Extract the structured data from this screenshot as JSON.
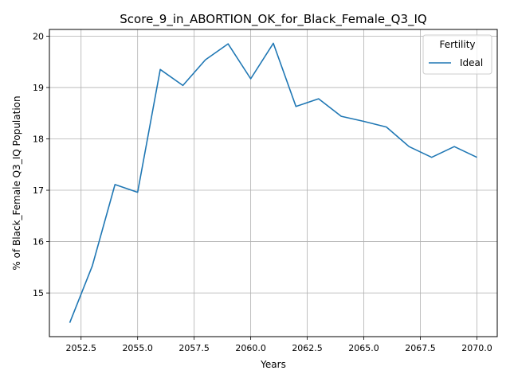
{
  "chart_data": {
    "type": "line",
    "title": "Score_9_in_ABORTION_OK_for_Black_Female_Q3_IQ",
    "xlabel": "Years",
    "ylabel": "% of Black_Female Q3_IQ Population",
    "xlim": [
      2051.1,
      2070.9
    ],
    "ylim": [
      14.15,
      20.13
    ],
    "grid": true,
    "legend_title": "Fertility",
    "legend_position": "top-right",
    "x_ticks": [
      2052.5,
      2055.0,
      2057.5,
      2060.0,
      2062.5,
      2065.0,
      2067.5,
      2070.0
    ],
    "x_tick_labels": [
      "2052.5",
      "2055.0",
      "2057.5",
      "2060.0",
      "2062.5",
      "2065.0",
      "2067.5",
      "2070.0"
    ],
    "y_ticks": [
      15,
      16,
      17,
      18,
      19,
      20
    ],
    "y_tick_labels": [
      "15",
      "16",
      "17",
      "18",
      "19",
      "20"
    ],
    "series": [
      {
        "name": "Ideal",
        "color": "#1f77b4",
        "x": [
          2052,
          2053,
          2054,
          2055,
          2056,
          2057,
          2058,
          2059,
          2060,
          2061,
          2062,
          2063,
          2064,
          2065,
          2066,
          2067,
          2068,
          2069,
          2070
        ],
        "y": [
          14.42,
          15.53,
          17.11,
          16.96,
          19.35,
          19.04,
          19.54,
          19.85,
          19.17,
          19.86,
          18.63,
          18.78,
          18.44,
          18.34,
          18.23,
          17.85,
          17.64,
          17.85,
          17.64
        ]
      }
    ]
  }
}
